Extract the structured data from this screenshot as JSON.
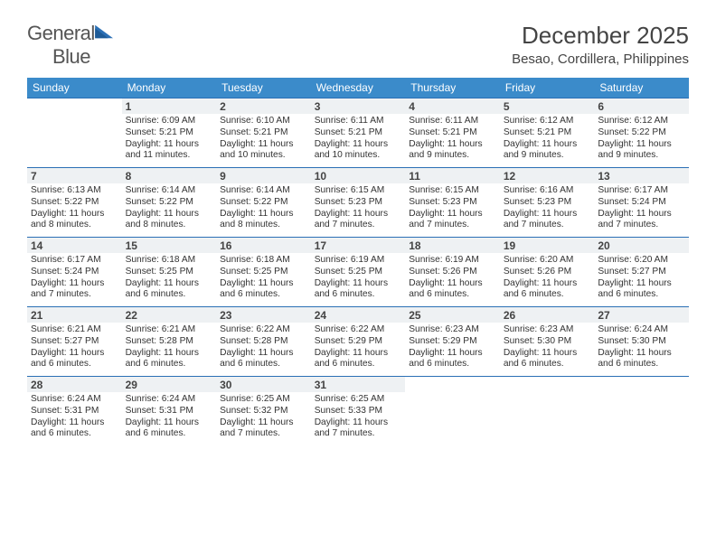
{
  "logo": {
    "text1": "General",
    "text2": "Blue"
  },
  "title": "December 2025",
  "location": "Besao, Cordillera, Philippines",
  "colors": {
    "header_bg": "#3b8bca",
    "border": "#2a6fb5",
    "shade": "#eef1f3"
  },
  "weekdays": [
    "Sunday",
    "Monday",
    "Tuesday",
    "Wednesday",
    "Thursday",
    "Friday",
    "Saturday"
  ],
  "grid": [
    [
      {
        "day": "",
        "lines": []
      },
      {
        "day": "1",
        "lines": [
          "Sunrise: 6:09 AM",
          "Sunset: 5:21 PM",
          "Daylight: 11 hours and 11 minutes."
        ]
      },
      {
        "day": "2",
        "lines": [
          "Sunrise: 6:10 AM",
          "Sunset: 5:21 PM",
          "Daylight: 11 hours and 10 minutes."
        ]
      },
      {
        "day": "3",
        "lines": [
          "Sunrise: 6:11 AM",
          "Sunset: 5:21 PM",
          "Daylight: 11 hours and 10 minutes."
        ]
      },
      {
        "day": "4",
        "lines": [
          "Sunrise: 6:11 AM",
          "Sunset: 5:21 PM",
          "Daylight: 11 hours and 9 minutes."
        ]
      },
      {
        "day": "5",
        "lines": [
          "Sunrise: 6:12 AM",
          "Sunset: 5:21 PM",
          "Daylight: 11 hours and 9 minutes."
        ]
      },
      {
        "day": "6",
        "lines": [
          "Sunrise: 6:12 AM",
          "Sunset: 5:22 PM",
          "Daylight: 11 hours and 9 minutes."
        ]
      }
    ],
    [
      {
        "day": "7",
        "lines": [
          "Sunrise: 6:13 AM",
          "Sunset: 5:22 PM",
          "Daylight: 11 hours and 8 minutes."
        ]
      },
      {
        "day": "8",
        "lines": [
          "Sunrise: 6:14 AM",
          "Sunset: 5:22 PM",
          "Daylight: 11 hours and 8 minutes."
        ]
      },
      {
        "day": "9",
        "lines": [
          "Sunrise: 6:14 AM",
          "Sunset: 5:22 PM",
          "Daylight: 11 hours and 8 minutes."
        ]
      },
      {
        "day": "10",
        "lines": [
          "Sunrise: 6:15 AM",
          "Sunset: 5:23 PM",
          "Daylight: 11 hours and 7 minutes."
        ]
      },
      {
        "day": "11",
        "lines": [
          "Sunrise: 6:15 AM",
          "Sunset: 5:23 PM",
          "Daylight: 11 hours and 7 minutes."
        ]
      },
      {
        "day": "12",
        "lines": [
          "Sunrise: 6:16 AM",
          "Sunset: 5:23 PM",
          "Daylight: 11 hours and 7 minutes."
        ]
      },
      {
        "day": "13",
        "lines": [
          "Sunrise: 6:17 AM",
          "Sunset: 5:24 PM",
          "Daylight: 11 hours and 7 minutes."
        ]
      }
    ],
    [
      {
        "day": "14",
        "lines": [
          "Sunrise: 6:17 AM",
          "Sunset: 5:24 PM",
          "Daylight: 11 hours and 7 minutes."
        ]
      },
      {
        "day": "15",
        "lines": [
          "Sunrise: 6:18 AM",
          "Sunset: 5:25 PM",
          "Daylight: 11 hours and 6 minutes."
        ]
      },
      {
        "day": "16",
        "lines": [
          "Sunrise: 6:18 AM",
          "Sunset: 5:25 PM",
          "Daylight: 11 hours and 6 minutes."
        ]
      },
      {
        "day": "17",
        "lines": [
          "Sunrise: 6:19 AM",
          "Sunset: 5:25 PM",
          "Daylight: 11 hours and 6 minutes."
        ]
      },
      {
        "day": "18",
        "lines": [
          "Sunrise: 6:19 AM",
          "Sunset: 5:26 PM",
          "Daylight: 11 hours and 6 minutes."
        ]
      },
      {
        "day": "19",
        "lines": [
          "Sunrise: 6:20 AM",
          "Sunset: 5:26 PM",
          "Daylight: 11 hours and 6 minutes."
        ]
      },
      {
        "day": "20",
        "lines": [
          "Sunrise: 6:20 AM",
          "Sunset: 5:27 PM",
          "Daylight: 11 hours and 6 minutes."
        ]
      }
    ],
    [
      {
        "day": "21",
        "lines": [
          "Sunrise: 6:21 AM",
          "Sunset: 5:27 PM",
          "Daylight: 11 hours and 6 minutes."
        ]
      },
      {
        "day": "22",
        "lines": [
          "Sunrise: 6:21 AM",
          "Sunset: 5:28 PM",
          "Daylight: 11 hours and 6 minutes."
        ]
      },
      {
        "day": "23",
        "lines": [
          "Sunrise: 6:22 AM",
          "Sunset: 5:28 PM",
          "Daylight: 11 hours and 6 minutes."
        ]
      },
      {
        "day": "24",
        "lines": [
          "Sunrise: 6:22 AM",
          "Sunset: 5:29 PM",
          "Daylight: 11 hours and 6 minutes."
        ]
      },
      {
        "day": "25",
        "lines": [
          "Sunrise: 6:23 AM",
          "Sunset: 5:29 PM",
          "Daylight: 11 hours and 6 minutes."
        ]
      },
      {
        "day": "26",
        "lines": [
          "Sunrise: 6:23 AM",
          "Sunset: 5:30 PM",
          "Daylight: 11 hours and 6 minutes."
        ]
      },
      {
        "day": "27",
        "lines": [
          "Sunrise: 6:24 AM",
          "Sunset: 5:30 PM",
          "Daylight: 11 hours and 6 minutes."
        ]
      }
    ],
    [
      {
        "day": "28",
        "lines": [
          "Sunrise: 6:24 AM",
          "Sunset: 5:31 PM",
          "Daylight: 11 hours and 6 minutes."
        ]
      },
      {
        "day": "29",
        "lines": [
          "Sunrise: 6:24 AM",
          "Sunset: 5:31 PM",
          "Daylight: 11 hours and 6 minutes."
        ]
      },
      {
        "day": "30",
        "lines": [
          "Sunrise: 6:25 AM",
          "Sunset: 5:32 PM",
          "Daylight: 11 hours and 7 minutes."
        ]
      },
      {
        "day": "31",
        "lines": [
          "Sunrise: 6:25 AM",
          "Sunset: 5:33 PM",
          "Daylight: 11 hours and 7 minutes."
        ]
      },
      {
        "day": "",
        "lines": []
      },
      {
        "day": "",
        "lines": []
      },
      {
        "day": "",
        "lines": []
      }
    ]
  ]
}
